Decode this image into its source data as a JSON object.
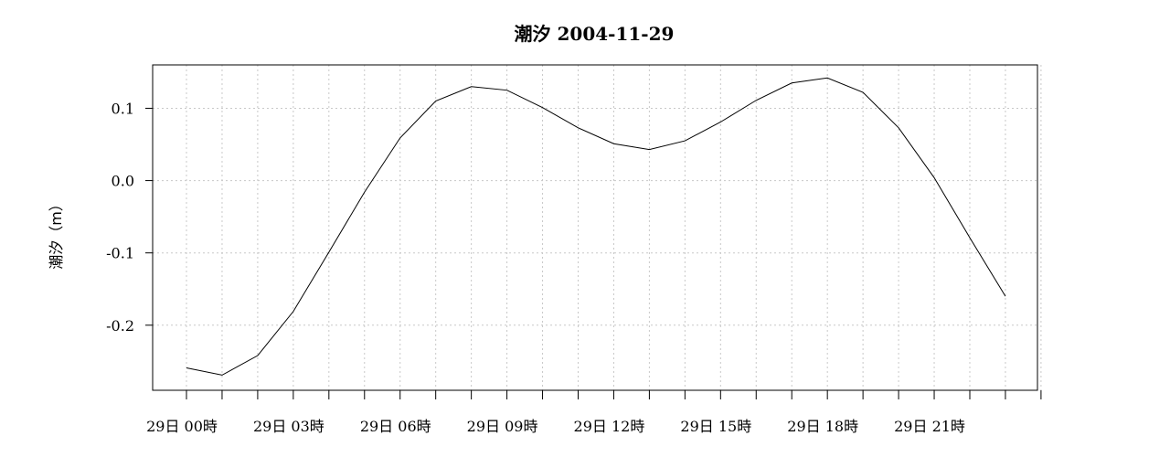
{
  "chart_data": {
    "type": "line",
    "title": "潮汐 2004-11-29",
    "xlabel": "",
    "ylabel": "潮汐（m）",
    "grid": true,
    "ylim": [
      -0.29,
      0.16
    ],
    "yticks": [
      0.1,
      0.0,
      -0.1,
      -0.2
    ],
    "ytick_labels": [
      "0.1",
      "0.0",
      "-0.1",
      "-0.2"
    ],
    "x_hours": [
      0,
      1,
      2,
      3,
      4,
      5,
      6,
      7,
      8,
      9,
      10,
      11,
      12,
      13,
      14,
      15,
      16,
      17,
      18,
      19,
      20,
      21,
      22,
      23
    ],
    "xticks_major": [
      0,
      3,
      6,
      9,
      12,
      15,
      18,
      21
    ],
    "xtick_labels": [
      "29日 00時",
      "29日 03時",
      "29日 06時",
      "29日 09時",
      "29日 12時",
      "29日 15時",
      "29日 18時",
      "29日 21時"
    ],
    "xlim": [
      -0.95,
      23.9
    ],
    "series": [
      {
        "values": [
          -0.259,
          -0.269,
          -0.242,
          -0.181,
          -0.099,
          -0.016,
          0.059,
          0.11,
          0.13,
          0.125,
          0.101,
          0.073,
          0.051,
          0.043,
          0.055,
          0.081,
          0.111,
          0.135,
          0.142,
          0.122,
          0.073,
          0.004,
          -0.079,
          -0.16
        ],
        "color": "#000000"
      }
    ]
  }
}
